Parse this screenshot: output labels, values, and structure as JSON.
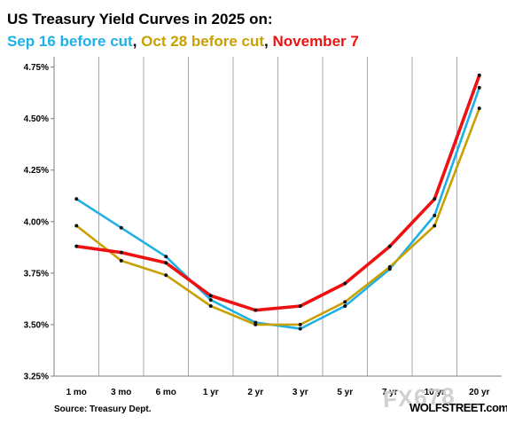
{
  "header": {
    "title": "US Treasury Yield Curves in 2025 on:",
    "series_1_label": "Sep 16 before cut",
    "series_2_label": "Oct 28 before cut",
    "series_3_label": "November 7",
    "sep_1": ", ",
    "sep_2": ", "
  },
  "footer": {
    "source": "Source: Treasury Dept.",
    "brand": "WOLFSTREET.com",
    "watermark": "FX678"
  },
  "chart_data": {
    "type": "line",
    "title": "US Treasury Yield Curves in 2025 on:",
    "categories": [
      "1 mo",
      "3 mo",
      "6 mo",
      "1 yr",
      "2 yr",
      "3 yr",
      "5 yr",
      "7 yr",
      "10 yr",
      "20 yr"
    ],
    "y_ticks": [
      "3.25%",
      "3.50%",
      "3.75%",
      "4.00%",
      "4.25%",
      "4.50%",
      "4.75%"
    ],
    "ylim": [
      3.25,
      4.8
    ],
    "grid": "vertical",
    "series": [
      {
        "name": "Sep 16 before cut",
        "color": "#1fb0e6",
        "values": [
          4.11,
          3.97,
          3.83,
          3.62,
          3.51,
          3.48,
          3.59,
          3.77,
          4.03,
          4.65
        ]
      },
      {
        "name": "Oct 28 before cut",
        "color": "#c8a000",
        "values": [
          3.98,
          3.81,
          3.74,
          3.59,
          3.5,
          3.5,
          3.61,
          3.78,
          3.98,
          4.55
        ]
      },
      {
        "name": "November 7",
        "color": "#ee1111",
        "values": [
          3.88,
          3.85,
          3.8,
          3.64,
          3.57,
          3.59,
          3.7,
          3.88,
          4.11,
          4.71
        ]
      }
    ]
  }
}
